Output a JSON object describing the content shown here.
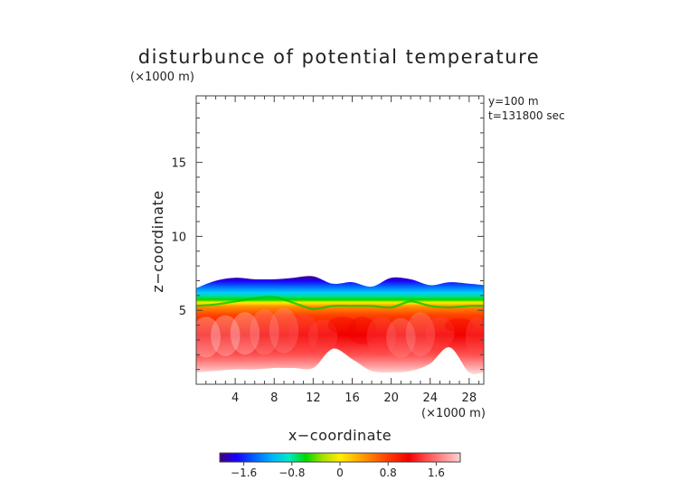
{
  "chart_data": {
    "type": "heatmap",
    "title": "disturbunce of potential temperature",
    "xlabel": "x−coordinate",
    "ylabel": "z−coordinate",
    "x_unit": "(×1000 m)",
    "y_unit": "(×1000 m)",
    "xlim": [
      0,
      29.5
    ],
    "ylim": [
      0,
      19.5
    ],
    "xticks": [
      4,
      8,
      12,
      16,
      20,
      24,
      28
    ],
    "xtick_labels": [
      "4",
      "8",
      "12",
      "16",
      "20",
      "24",
      "28"
    ],
    "yticks": [
      5,
      10,
      15
    ],
    "ytick_labels": [
      "5",
      "10",
      "15"
    ],
    "info_lines": [
      "y=100 m",
      "t=131800 sec"
    ],
    "colorbar": {
      "range": [
        -2.0,
        2.0
      ],
      "tick_values": [
        -1.6,
        -0.8,
        0,
        0.8,
        1.6
      ],
      "tick_labels": [
        "−1.6",
        "−0.8",
        "0",
        "0.8",
        "1.6"
      ],
      "colors": [
        "#40007f",
        "#1a00ff",
        "#0060ff",
        "#00b0ff",
        "#00e8c8",
        "#00d800",
        "#a8e000",
        "#ffee00",
        "#ffb000",
        "#ff7000",
        "#ff3000",
        "#f00000",
        "#ff4a4a",
        "#ff9090",
        "#ffd0d0"
      ]
    },
    "field": {
      "x": [
        0,
        2,
        4,
        6,
        8,
        10,
        12,
        14,
        16,
        18,
        20,
        22,
        24,
        26,
        28,
        29.5
      ],
      "top_height": [
        6.5,
        7.0,
        7.2,
        7.1,
        7.1,
        7.2,
        7.3,
        6.8,
        6.9,
        6.6,
        7.2,
        7.1,
        6.7,
        6.9,
        6.8,
        6.7
      ],
      "green_height": [
        5.3,
        5.4,
        5.6,
        5.8,
        5.9,
        5.5,
        5.1,
        5.3,
        5.3,
        5.3,
        5.2,
        5.6,
        5.3,
        5.2,
        5.3,
        5.3
      ],
      "bottom_height": [
        0.8,
        0.9,
        1.0,
        1.0,
        1.1,
        1.1,
        1.1,
        2.4,
        1.7,
        0.9,
        0.8,
        0.9,
        1.4,
        2.5,
        0.8,
        0.8
      ],
      "anomaly_values": [
        2.0,
        1.9,
        1.8,
        1.7,
        1.6,
        1.3,
        1.2,
        1.0,
        1.1,
        1.3,
        1.7,
        1.5,
        1.2,
        1.1,
        1.4,
        1.7
      ]
    }
  }
}
